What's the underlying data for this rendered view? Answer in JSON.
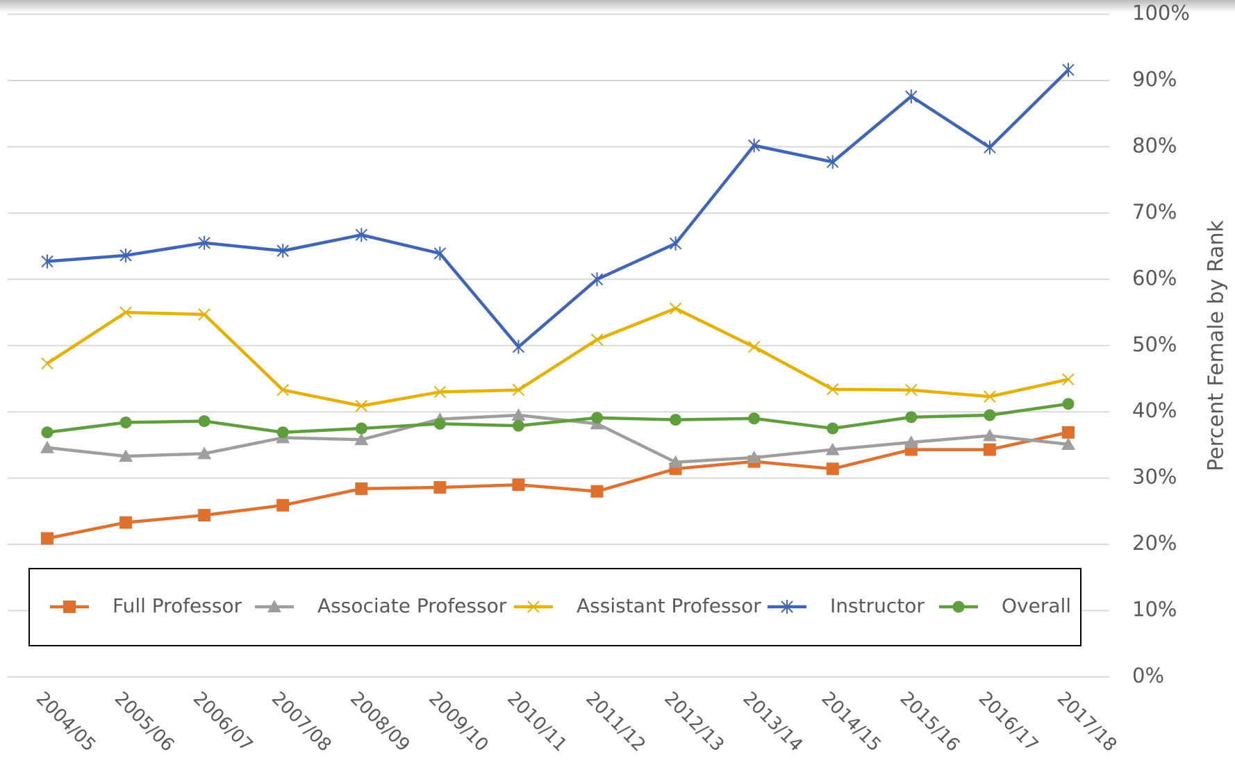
{
  "chart_data": {
    "type": "line",
    "y_label": "Percent Female by Rank",
    "categories": [
      "2004/05",
      "2005/06",
      "2006/07",
      "2007/08",
      "2008/09",
      "2009/10",
      "2010/11",
      "2011/12",
      "2012/13",
      "2013/14",
      "2014/15",
      "2015/16",
      "2016/17",
      "2017/18"
    ],
    "series": [
      {
        "name": "Full Professor",
        "color": "#E0702E",
        "marker": "square",
        "values": [
          20.9,
          23.3,
          24.4,
          25.9,
          28.4,
          28.6,
          29.0,
          28.0,
          31.4,
          32.5,
          31.4,
          34.3,
          34.3,
          36.9
        ]
      },
      {
        "name": "Associate Professor",
        "color": "#9E9E9E",
        "marker": "triangle",
        "values": [
          34.6,
          33.3,
          33.7,
          36.1,
          35.8,
          38.9,
          39.5,
          38.2,
          32.4,
          33.1,
          34.3,
          35.4,
          36.4,
          35.1
        ]
      },
      {
        "name": "Assistant Professor",
        "color": "#E6B000",
        "marker": "x",
        "values": [
          47.3,
          55.0,
          54.7,
          43.3,
          40.9,
          43.0,
          43.3,
          50.9,
          55.6,
          49.8,
          43.4,
          43.3,
          42.3,
          44.9
        ]
      },
      {
        "name": "Instructor",
        "color": "#3F65B8",
        "marker": "asterisk",
        "values": [
          62.7,
          63.6,
          65.5,
          64.3,
          66.7,
          63.9,
          49.8,
          60.0,
          65.4,
          80.2,
          77.7,
          87.6,
          79.9,
          91.6
        ]
      },
      {
        "name": "Overall",
        "color": "#5E9E3C",
        "marker": "circle",
        "values": [
          36.9,
          38.4,
          38.6,
          36.9,
          37.5,
          38.2,
          37.9,
          39.1,
          38.8,
          39.0,
          37.5,
          39.2,
          39.5,
          41.2
        ]
      }
    ],
    "ylim": [
      0,
      100
    ],
    "yticks": [
      {
        "value": 0,
        "label": "0%"
      },
      {
        "value": 10,
        "label": "10%"
      },
      {
        "value": 20,
        "label": "20%"
      },
      {
        "value": 30,
        "label": "30%"
      },
      {
        "value": 40,
        "label": "40%"
      },
      {
        "value": 50,
        "label": "50%"
      },
      {
        "value": 60,
        "label": "60%"
      },
      {
        "value": 70,
        "label": "70%"
      },
      {
        "value": 80,
        "label": "80%"
      },
      {
        "value": 90,
        "label": "90%"
      },
      {
        "value": 100,
        "label": "100%"
      }
    ],
    "grid": true,
    "legend": "bottom"
  }
}
